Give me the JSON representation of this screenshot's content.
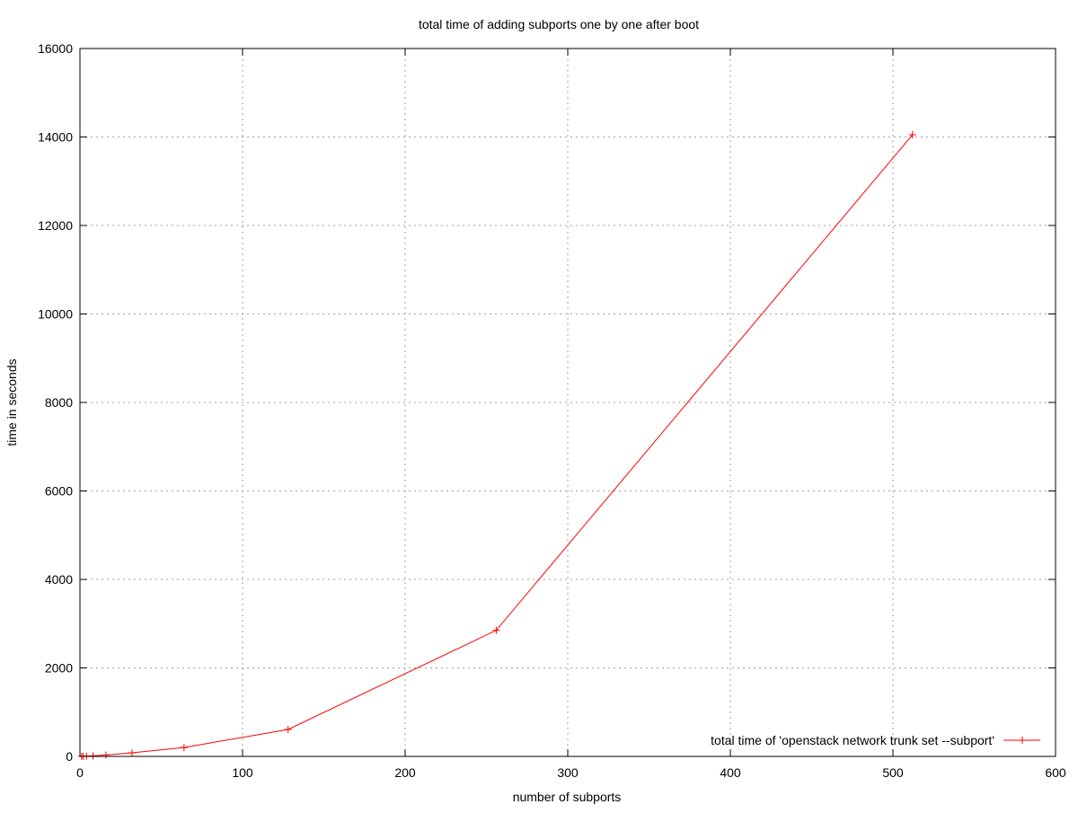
{
  "chart_data": {
    "type": "line",
    "title": "total time of adding subports one by one after boot",
    "xlabel": "number of subports",
    "ylabel": "time in seconds",
    "xlim": [
      0,
      600
    ],
    "ylim": [
      0,
      16000
    ],
    "xticks": [
      0,
      100,
      200,
      300,
      400,
      500,
      600
    ],
    "yticks": [
      0,
      2000,
      4000,
      6000,
      8000,
      10000,
      12000,
      14000,
      16000
    ],
    "grid": true,
    "legend_position": "bottom-right",
    "series": [
      {
        "name": "total time of 'openstack network trunk set --subport'",
        "color": "#ff0000",
        "marker": "plus",
        "x": [
          1,
          2,
          4,
          8,
          16,
          32,
          64,
          128,
          256,
          512
        ],
        "y": [
          1,
          2,
          5,
          12,
          30,
          80,
          200,
          610,
          2850,
          14050
        ]
      }
    ]
  }
}
